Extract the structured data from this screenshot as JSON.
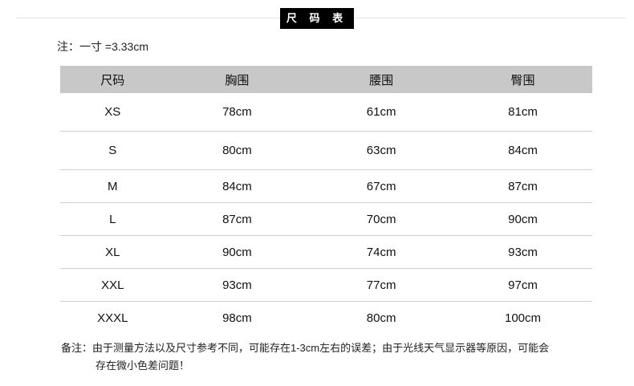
{
  "title": "尺 码 表",
  "note": "注：一寸 =3.33cm",
  "table": {
    "headers": [
      "尺码",
      "胸围",
      "腰围",
      "臀围"
    ],
    "rows": [
      [
        "XS",
        "78cm",
        "61cm",
        "81cm"
      ],
      [
        "S",
        "80cm",
        "63cm",
        "84cm"
      ],
      [
        "M",
        "84cm",
        "67cm",
        "87cm"
      ],
      [
        "L",
        "87cm",
        "70cm",
        "90cm"
      ],
      [
        "XL",
        "90cm",
        "74cm",
        "93cm"
      ],
      [
        "XXL",
        "93cm",
        "77cm",
        "97cm"
      ],
      [
        "XXXL",
        "98cm",
        "80cm",
        "100cm"
      ]
    ]
  },
  "remark": {
    "line1": "备注：由于测量方法以及尺寸参考不同，可能存在1-3cm左右的误差；由于光线天气显示器等原因，可能会",
    "line2": "存在微小色差问题！"
  }
}
